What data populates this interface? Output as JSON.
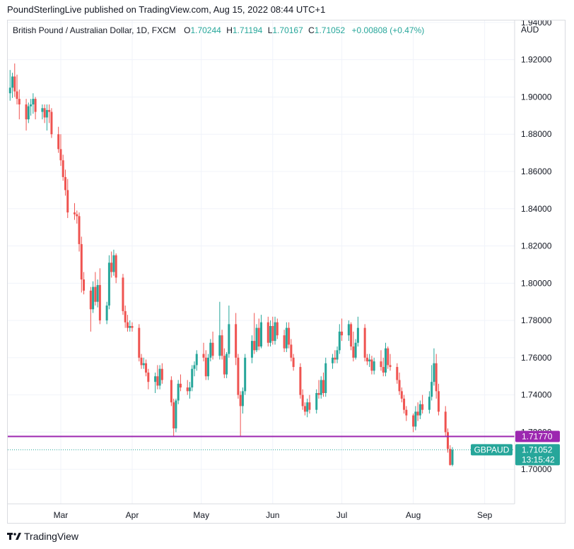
{
  "credit": "PoundSterlingLive published on TradingView.com, Aug 15, 2022 08:44 UTC+1",
  "footer": {
    "brand": "TradingView",
    "logo_icon": "tradingview-logo-icon"
  },
  "legend": {
    "symbol": "British Pound / Australian Dollar, 1D, FXCM",
    "o_label": "O",
    "o_value": "1.70244",
    "h_label": "H",
    "h_value": "1.71194",
    "l_label": "L",
    "l_value": "1.70167",
    "c_label": "C",
    "c_value": "1.71052",
    "change": "+0.00808 (+0.47%)"
  },
  "colors": {
    "up": "#26a69a",
    "down": "#ef5350",
    "level": "#9c27b0",
    "axis_text": "#131722",
    "grid": "#f0f3fa"
  },
  "chart_data": {
    "type": "candlestick",
    "currency": "AUD",
    "y_ticks": [
      "1.70000",
      "1.72000",
      "1.74000",
      "1.76000",
      "1.78000",
      "1.80000",
      "1.82000",
      "1.84000",
      "1.86000",
      "1.88000",
      "1.90000",
      "1.92000",
      "1.94000"
    ],
    "ylim": [
      1.6815,
      1.9411
    ],
    "x_ticks": [
      {
        "label": "Mar",
        "date": "2022-03-01"
      },
      {
        "label": "Apr",
        "date": "2022-04-01"
      },
      {
        "label": "May",
        "date": "2022-05-01"
      },
      {
        "label": "Jun",
        "date": "2022-06-01"
      },
      {
        "label": "Jul",
        "date": "2022-07-01"
      },
      {
        "label": "Aug",
        "date": "2022-08-01"
      },
      {
        "label": "Sep",
        "date": "2022-09-01"
      }
    ],
    "xlim": [
      "2022-02-06",
      "2022-09-14"
    ],
    "horizontal_line": {
      "value": 1.7177,
      "label": "1.71770"
    },
    "last_price": {
      "value": 1.71052,
      "label": "1.71052",
      "symbol_tag": "GBPAUD",
      "countdown": "13:15:42"
    },
    "candles": [
      {
        "date": "2022-02-07",
        "o": 1.902,
        "h": 1.9145,
        "l": 1.898,
        "c": 1.905
      },
      {
        "date": "2022-02-08",
        "o": 1.905,
        "h": 1.913,
        "l": 1.8995,
        "c": 1.911
      },
      {
        "date": "2022-02-09",
        "o": 1.911,
        "h": 1.918,
        "l": 1.9,
        "c": 1.903
      },
      {
        "date": "2022-02-10",
        "o": 1.903,
        "h": 1.912,
        "l": 1.896,
        "c": 1.899
      },
      {
        "date": "2022-02-11",
        "o": 1.899,
        "h": 1.904,
        "l": 1.888,
        "c": 1.896
      },
      {
        "date": "2022-02-14",
        "o": 1.896,
        "h": 1.899,
        "l": 1.882,
        "c": 1.888
      },
      {
        "date": "2022-02-15",
        "o": 1.888,
        "h": 1.897,
        "l": 1.886,
        "c": 1.895
      },
      {
        "date": "2022-02-16",
        "o": 1.895,
        "h": 1.899,
        "l": 1.89,
        "c": 1.896
      },
      {
        "date": "2022-02-17",
        "o": 1.896,
        "h": 1.902,
        "l": 1.891,
        "c": 1.899
      },
      {
        "date": "2022-02-18",
        "o": 1.899,
        "h": 1.9,
        "l": 1.888,
        "c": 1.892
      },
      {
        "date": "2022-02-21",
        "o": 1.892,
        "h": 1.896,
        "l": 1.888,
        "c": 1.894
      },
      {
        "date": "2022-02-22",
        "o": 1.894,
        "h": 1.896,
        "l": 1.886,
        "c": 1.889
      },
      {
        "date": "2022-02-23",
        "o": 1.889,
        "h": 1.896,
        "l": 1.882,
        "c": 1.893
      },
      {
        "date": "2022-02-24",
        "o": 1.893,
        "h": 1.896,
        "l": 1.886,
        "c": 1.892
      },
      {
        "date": "2022-02-25",
        "o": 1.892,
        "h": 1.894,
        "l": 1.878,
        "c": 1.88
      },
      {
        "date": "2022-02-28",
        "o": 1.88,
        "h": 1.884,
        "l": 1.87,
        "c": 1.872
      },
      {
        "date": "2022-03-01",
        "o": 1.872,
        "h": 1.88,
        "l": 1.863,
        "c": 1.866
      },
      {
        "date": "2022-03-02",
        "o": 1.866,
        "h": 1.869,
        "l": 1.855,
        "c": 1.857
      },
      {
        "date": "2022-03-03",
        "o": 1.857,
        "h": 1.861,
        "l": 1.847,
        "c": 1.85
      },
      {
        "date": "2022-03-04",
        "o": 1.85,
        "h": 1.856,
        "l": 1.835,
        "c": 1.838
      },
      {
        "date": "2022-03-07",
        "o": 1.838,
        "h": 1.843,
        "l": 1.834,
        "c": 1.837
      },
      {
        "date": "2022-03-08",
        "o": 1.837,
        "h": 1.839,
        "l": 1.832,
        "c": 1.836
      },
      {
        "date": "2022-03-09",
        "o": 1.836,
        "h": 1.838,
        "l": 1.817,
        "c": 1.821
      },
      {
        "date": "2022-03-10",
        "o": 1.821,
        "h": 1.825,
        "l": 1.795,
        "c": 1.802
      },
      {
        "date": "2022-03-11",
        "o": 1.802,
        "h": 1.806,
        "l": 1.794,
        "c": 1.796
      },
      {
        "date": "2022-03-14",
        "o": 1.796,
        "h": 1.798,
        "l": 1.774,
        "c": 1.786
      },
      {
        "date": "2022-03-15",
        "o": 1.786,
        "h": 1.801,
        "l": 1.784,
        "c": 1.798
      },
      {
        "date": "2022-03-16",
        "o": 1.798,
        "h": 1.806,
        "l": 1.788,
        "c": 1.79
      },
      {
        "date": "2022-03-17",
        "o": 1.79,
        "h": 1.802,
        "l": 1.787,
        "c": 1.799
      },
      {
        "date": "2022-03-18",
        "o": 1.799,
        "h": 1.808,
        "l": 1.778,
        "c": 1.78
      },
      {
        "date": "2022-03-21",
        "o": 1.78,
        "h": 1.79,
        "l": 1.778,
        "c": 1.788
      },
      {
        "date": "2022-03-22",
        "o": 1.788,
        "h": 1.815,
        "l": 1.786,
        "c": 1.811
      },
      {
        "date": "2022-03-23",
        "o": 1.811,
        "h": 1.817,
        "l": 1.803,
        "c": 1.806
      },
      {
        "date": "2022-03-24",
        "o": 1.806,
        "h": 1.818,
        "l": 1.804,
        "c": 1.815
      },
      {
        "date": "2022-03-25",
        "o": 1.815,
        "h": 1.816,
        "l": 1.8,
        "c": 1.803
      },
      {
        "date": "2022-03-28",
        "o": 1.803,
        "h": 1.805,
        "l": 1.783,
        "c": 1.785
      },
      {
        "date": "2022-03-29",
        "o": 1.785,
        "h": 1.788,
        "l": 1.776,
        "c": 1.779
      },
      {
        "date": "2022-03-30",
        "o": 1.779,
        "h": 1.783,
        "l": 1.774,
        "c": 1.776
      },
      {
        "date": "2022-03-31",
        "o": 1.776,
        "h": 1.78,
        "l": 1.774,
        "c": 1.777
      },
      {
        "date": "2022-04-01",
        "o": 1.777,
        "h": 1.779,
        "l": 1.774,
        "c": 1.776
      },
      {
        "date": "2022-04-04",
        "o": 1.776,
        "h": 1.778,
        "l": 1.758,
        "c": 1.76
      },
      {
        "date": "2022-04-05",
        "o": 1.76,
        "h": 1.762,
        "l": 1.754,
        "c": 1.756
      },
      {
        "date": "2022-04-06",
        "o": 1.756,
        "h": 1.76,
        "l": 1.754,
        "c": 1.757
      },
      {
        "date": "2022-04-07",
        "o": 1.757,
        "h": 1.759,
        "l": 1.75,
        "c": 1.752
      },
      {
        "date": "2022-04-08",
        "o": 1.752,
        "h": 1.754,
        "l": 1.743,
        "c": 1.747
      },
      {
        "date": "2022-04-11",
        "o": 1.747,
        "h": 1.752,
        "l": 1.741,
        "c": 1.75
      },
      {
        "date": "2022-04-12",
        "o": 1.75,
        "h": 1.756,
        "l": 1.743,
        "c": 1.745
      },
      {
        "date": "2022-04-13",
        "o": 1.745,
        "h": 1.756,
        "l": 1.743,
        "c": 1.754
      },
      {
        "date": "2022-04-14",
        "o": 1.754,
        "h": 1.757,
        "l": 1.746,
        "c": 1.748
      },
      {
        "date": "2022-04-18",
        "o": 1.748,
        "h": 1.75,
        "l": 1.734,
        "c": 1.736
      },
      {
        "date": "2022-04-19",
        "o": 1.736,
        "h": 1.738,
        "l": 1.718,
        "c": 1.722
      },
      {
        "date": "2022-04-20",
        "o": 1.722,
        "h": 1.738,
        "l": 1.72,
        "c": 1.737
      },
      {
        "date": "2022-04-21",
        "o": 1.737,
        "h": 1.748,
        "l": 1.735,
        "c": 1.746
      },
      {
        "date": "2022-04-22",
        "o": 1.746,
        "h": 1.751,
        "l": 1.742,
        "c": 1.744
      },
      {
        "date": "2022-04-25",
        "o": 1.744,
        "h": 1.748,
        "l": 1.74,
        "c": 1.742
      },
      {
        "date": "2022-04-26",
        "o": 1.742,
        "h": 1.747,
        "l": 1.738,
        "c": 1.744
      },
      {
        "date": "2022-04-27",
        "o": 1.744,
        "h": 1.756,
        "l": 1.742,
        "c": 1.754
      },
      {
        "date": "2022-04-28",
        "o": 1.754,
        "h": 1.758,
        "l": 1.75,
        "c": 1.756
      },
      {
        "date": "2022-04-29",
        "o": 1.756,
        "h": 1.764,
        "l": 1.753,
        "c": 1.762
      },
      {
        "date": "2022-05-02",
        "o": 1.762,
        "h": 1.768,
        "l": 1.758,
        "c": 1.76
      },
      {
        "date": "2022-05-03",
        "o": 1.76,
        "h": 1.764,
        "l": 1.748,
        "c": 1.75
      },
      {
        "date": "2022-05-04",
        "o": 1.75,
        "h": 1.762,
        "l": 1.748,
        "c": 1.76
      },
      {
        "date": "2022-05-05",
        "o": 1.76,
        "h": 1.77,
        "l": 1.758,
        "c": 1.768
      },
      {
        "date": "2022-05-06",
        "o": 1.768,
        "h": 1.774,
        "l": 1.759,
        "c": 1.761
      },
      {
        "date": "2022-05-09",
        "o": 1.761,
        "h": 1.79,
        "l": 1.759,
        "c": 1.772
      },
      {
        "date": "2022-05-10",
        "o": 1.772,
        "h": 1.775,
        "l": 1.759,
        "c": 1.761
      },
      {
        "date": "2022-05-11",
        "o": 1.761,
        "h": 1.765,
        "l": 1.749,
        "c": 1.751
      },
      {
        "date": "2022-05-12",
        "o": 1.751,
        "h": 1.763,
        "l": 1.749,
        "c": 1.762
      },
      {
        "date": "2022-05-13",
        "o": 1.762,
        "h": 1.788,
        "l": 1.76,
        "c": 1.778
      },
      {
        "date": "2022-05-16",
        "o": 1.778,
        "h": 1.784,
        "l": 1.756,
        "c": 1.76
      },
      {
        "date": "2022-05-17",
        "o": 1.76,
        "h": 1.762,
        "l": 1.738,
        "c": 1.74
      },
      {
        "date": "2022-05-18",
        "o": 1.74,
        "h": 1.742,
        "l": 1.718,
        "c": 1.734
      },
      {
        "date": "2022-05-19",
        "o": 1.734,
        "h": 1.744,
        "l": 1.73,
        "c": 1.742
      },
      {
        "date": "2022-05-20",
        "o": 1.742,
        "h": 1.762,
        "l": 1.74,
        "c": 1.76
      },
      {
        "date": "2022-05-23",
        "o": 1.76,
        "h": 1.772,
        "l": 1.757,
        "c": 1.769
      },
      {
        "date": "2022-05-24",
        "o": 1.769,
        "h": 1.784,
        "l": 1.762,
        "c": 1.764
      },
      {
        "date": "2022-05-25",
        "o": 1.764,
        "h": 1.778,
        "l": 1.763,
        "c": 1.776
      },
      {
        "date": "2022-05-26",
        "o": 1.776,
        "h": 1.781,
        "l": 1.764,
        "c": 1.766
      },
      {
        "date": "2022-05-27",
        "o": 1.766,
        "h": 1.783,
        "l": 1.765,
        "c": 1.779
      },
      {
        "date": "2022-05-30",
        "o": 1.779,
        "h": 1.782,
        "l": 1.766,
        "c": 1.768
      },
      {
        "date": "2022-05-31",
        "o": 1.768,
        "h": 1.78,
        "l": 1.766,
        "c": 1.777
      },
      {
        "date": "2022-06-01",
        "o": 1.777,
        "h": 1.782,
        "l": 1.767,
        "c": 1.769
      },
      {
        "date": "2022-06-02",
        "o": 1.769,
        "h": 1.782,
        "l": 1.767,
        "c": 1.779
      },
      {
        "date": "2022-06-03",
        "o": 1.779,
        "h": 1.781,
        "l": 1.77,
        "c": 1.772
      },
      {
        "date": "2022-06-06",
        "o": 1.772,
        "h": 1.775,
        "l": 1.763,
        "c": 1.765
      },
      {
        "date": "2022-06-07",
        "o": 1.765,
        "h": 1.779,
        "l": 1.763,
        "c": 1.776
      },
      {
        "date": "2022-06-08",
        "o": 1.776,
        "h": 1.779,
        "l": 1.765,
        "c": 1.767
      },
      {
        "date": "2022-06-09",
        "o": 1.767,
        "h": 1.77,
        "l": 1.758,
        "c": 1.76
      },
      {
        "date": "2022-06-10",
        "o": 1.76,
        "h": 1.762,
        "l": 1.753,
        "c": 1.755
      },
      {
        "date": "2022-06-13",
        "o": 1.755,
        "h": 1.757,
        "l": 1.738,
        "c": 1.74
      },
      {
        "date": "2022-06-14",
        "o": 1.74,
        "h": 1.743,
        "l": 1.732,
        "c": 1.734
      },
      {
        "date": "2022-06-15",
        "o": 1.734,
        "h": 1.736,
        "l": 1.729,
        "c": 1.731
      },
      {
        "date": "2022-06-16",
        "o": 1.731,
        "h": 1.738,
        "l": 1.728,
        "c": 1.736
      },
      {
        "date": "2022-06-17",
        "o": 1.736,
        "h": 1.74,
        "l": 1.73,
        "c": 1.732
      },
      {
        "date": "2022-06-20",
        "o": 1.732,
        "h": 1.743,
        "l": 1.73,
        "c": 1.741
      },
      {
        "date": "2022-06-21",
        "o": 1.741,
        "h": 1.748,
        "l": 1.738,
        "c": 1.74
      },
      {
        "date": "2022-06-22",
        "o": 1.74,
        "h": 1.75,
        "l": 1.738,
        "c": 1.748
      },
      {
        "date": "2022-06-23",
        "o": 1.748,
        "h": 1.752,
        "l": 1.739,
        "c": 1.741
      },
      {
        "date": "2022-06-24",
        "o": 1.741,
        "h": 1.76,
        "l": 1.739,
        "c": 1.757
      },
      {
        "date": "2022-06-27",
        "o": 1.757,
        "h": 1.762,
        "l": 1.754,
        "c": 1.76
      },
      {
        "date": "2022-06-28",
        "o": 1.76,
        "h": 1.764,
        "l": 1.757,
        "c": 1.759
      },
      {
        "date": "2022-06-29",
        "o": 1.759,
        "h": 1.766,
        "l": 1.757,
        "c": 1.764
      },
      {
        "date": "2022-06-30",
        "o": 1.764,
        "h": 1.778,
        "l": 1.762,
        "c": 1.774
      },
      {
        "date": "2022-07-01",
        "o": 1.774,
        "h": 1.781,
        "l": 1.769,
        "c": 1.772
      },
      {
        "date": "2022-07-04",
        "o": 1.772,
        "h": 1.78,
        "l": 1.769,
        "c": 1.778
      },
      {
        "date": "2022-07-05",
        "o": 1.778,
        "h": 1.779,
        "l": 1.764,
        "c": 1.766
      },
      {
        "date": "2022-07-06",
        "o": 1.766,
        "h": 1.774,
        "l": 1.758,
        "c": 1.76
      },
      {
        "date": "2022-07-07",
        "o": 1.76,
        "h": 1.77,
        "l": 1.759,
        "c": 1.768
      },
      {
        "date": "2022-07-08",
        "o": 1.768,
        "h": 1.782,
        "l": 1.766,
        "c": 1.776
      },
      {
        "date": "2022-07-11",
        "o": 1.776,
        "h": 1.778,
        "l": 1.758,
        "c": 1.76
      },
      {
        "date": "2022-07-12",
        "o": 1.76,
        "h": 1.762,
        "l": 1.756,
        "c": 1.758
      },
      {
        "date": "2022-07-13",
        "o": 1.758,
        "h": 1.762,
        "l": 1.755,
        "c": 1.759
      },
      {
        "date": "2022-07-14",
        "o": 1.759,
        "h": 1.761,
        "l": 1.751,
        "c": 1.753
      },
      {
        "date": "2022-07-15",
        "o": 1.753,
        "h": 1.76,
        "l": 1.751,
        "c": 1.758
      },
      {
        "date": "2022-07-18",
        "o": 1.758,
        "h": 1.764,
        "l": 1.753,
        "c": 1.755
      },
      {
        "date": "2022-07-19",
        "o": 1.755,
        "h": 1.76,
        "l": 1.75,
        "c": 1.752
      },
      {
        "date": "2022-07-20",
        "o": 1.752,
        "h": 1.768,
        "l": 1.75,
        "c": 1.765
      },
      {
        "date": "2022-07-21",
        "o": 1.765,
        "h": 1.766,
        "l": 1.754,
        "c": 1.756
      },
      {
        "date": "2022-07-22",
        "o": 1.756,
        "h": 1.762,
        "l": 1.753,
        "c": 1.755
      },
      {
        "date": "2022-07-25",
        "o": 1.755,
        "h": 1.757,
        "l": 1.746,
        "c": 1.748
      },
      {
        "date": "2022-07-26",
        "o": 1.748,
        "h": 1.752,
        "l": 1.74,
        "c": 1.742
      },
      {
        "date": "2022-07-27",
        "o": 1.742,
        "h": 1.744,
        "l": 1.736,
        "c": 1.738
      },
      {
        "date": "2022-07-28",
        "o": 1.738,
        "h": 1.74,
        "l": 1.73,
        "c": 1.732
      },
      {
        "date": "2022-07-29",
        "o": 1.732,
        "h": 1.734,
        "l": 1.726,
        "c": 1.729
      },
      {
        "date": "2022-08-01",
        "o": 1.729,
        "h": 1.73,
        "l": 1.72,
        "c": 1.723
      },
      {
        "date": "2022-08-02",
        "o": 1.723,
        "h": 1.734,
        "l": 1.721,
        "c": 1.731
      },
      {
        "date": "2022-08-03",
        "o": 1.731,
        "h": 1.736,
        "l": 1.726,
        "c": 1.729
      },
      {
        "date": "2022-08-04",
        "o": 1.729,
        "h": 1.737,
        "l": 1.727,
        "c": 1.735
      },
      {
        "date": "2022-08-05",
        "o": 1.735,
        "h": 1.74,
        "l": 1.73,
        "c": 1.732
      },
      {
        "date": "2022-08-08",
        "o": 1.732,
        "h": 1.742,
        "l": 1.73,
        "c": 1.739
      },
      {
        "date": "2022-08-09",
        "o": 1.739,
        "h": 1.756,
        "l": 1.737,
        "c": 1.747
      },
      {
        "date": "2022-08-10",
        "o": 1.747,
        "h": 1.765,
        "l": 1.745,
        "c": 1.757
      },
      {
        "date": "2022-08-11",
        "o": 1.757,
        "h": 1.762,
        "l": 1.738,
        "c": 1.742
      },
      {
        "date": "2022-08-12",
        "o": 1.742,
        "h": 1.746,
        "l": 1.729,
        "c": 1.731
      },
      {
        "date": "2022-08-15",
        "o": 1.731,
        "h": 1.734,
        "l": 1.718,
        "c": 1.72
      },
      {
        "date": "2022-08-16",
        "o": 1.72,
        "h": 1.722,
        "l": 1.709,
        "c": 1.711
      },
      {
        "date": "2022-08-17",
        "o": 1.711,
        "h": 1.713,
        "l": 1.702,
        "c": 1.7024
      },
      {
        "date": "2022-08-18",
        "o": 1.70244,
        "h": 1.71194,
        "l": 1.70167,
        "c": 1.71052
      }
    ]
  }
}
